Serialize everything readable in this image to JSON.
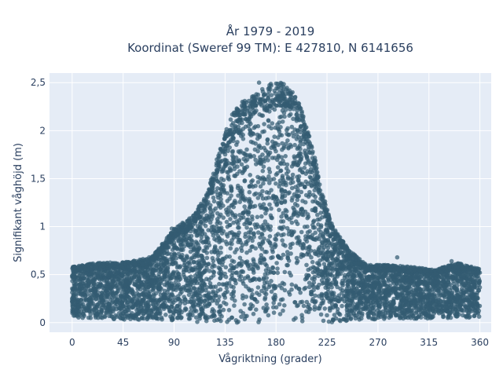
{
  "chart_data": {
    "type": "scatter",
    "title_line1": "År 1979 - 2019",
    "title_line2": "Koordinat (Sweref 99 TM): E 427810, N 6141656",
    "xlabel": "Vågriktning (grader)",
    "ylabel": "Signifikant våghöjd (m)",
    "xlim": [
      -20,
      370
    ],
    "ylim": [
      -0.1,
      2.6
    ],
    "xticks": [
      0,
      45,
      90,
      135,
      180,
      225,
      270,
      315,
      360
    ],
    "xtick_labels": [
      "0",
      "45",
      "90",
      "135",
      "180",
      "225",
      "270",
      "315",
      "360"
    ],
    "yticks": [
      0,
      0.5,
      1,
      1.5,
      2,
      2.5
    ],
    "ytick_labels": [
      "0",
      "0,5",
      "1",
      "1,5",
      "2",
      "2,5"
    ],
    "grid": true,
    "marker_color": "#335b72",
    "plot_background": "#e5ecf6",
    "envelope": {
      "direction": [
        0,
        20,
        45,
        70,
        90,
        105,
        120,
        130,
        140,
        150,
        160,
        170,
        180,
        190,
        200,
        210,
        220,
        230,
        245,
        260,
        280,
        300,
        320,
        340,
        360
      ],
      "max_height": [
        0.58,
        0.62,
        0.63,
        0.68,
        0.98,
        1.1,
        1.38,
        1.8,
        2.15,
        2.3,
        2.38,
        2.45,
        2.52,
        2.48,
        2.3,
        1.95,
        1.4,
        1.0,
        0.75,
        0.6,
        0.6,
        0.58,
        0.55,
        0.62,
        0.56
      ],
      "min_height": [
        0.03,
        0.05,
        0.03,
        0.03,
        0.02,
        0.0,
        0.0,
        0.0,
        0.0,
        0.0,
        0.0,
        0.0,
        0.0,
        0.0,
        0.0,
        0.0,
        0.0,
        0.0,
        0.02,
        0.03,
        0.04,
        0.03,
        0.04,
        0.05,
        0.05
      ]
    },
    "outliers": [
      {
        "x": 2,
        "y": 0.55
      },
      {
        "x": 28,
        "y": 0.62
      },
      {
        "x": 50,
        "y": 0.63
      },
      {
        "x": 68,
        "y": 0.68
      },
      {
        "x": 88,
        "y": 0.98
      },
      {
        "x": 165,
        "y": 2.5
      },
      {
        "x": 287,
        "y": 0.68
      },
      {
        "x": 335,
        "y": 0.64
      },
      {
        "x": 314,
        "y": 0.5
      },
      {
        "x": 355,
        "y": 0.52
      },
      {
        "x": 270,
        "y": 0.6
      },
      {
        "x": 240,
        "y": 0.78
      }
    ]
  }
}
